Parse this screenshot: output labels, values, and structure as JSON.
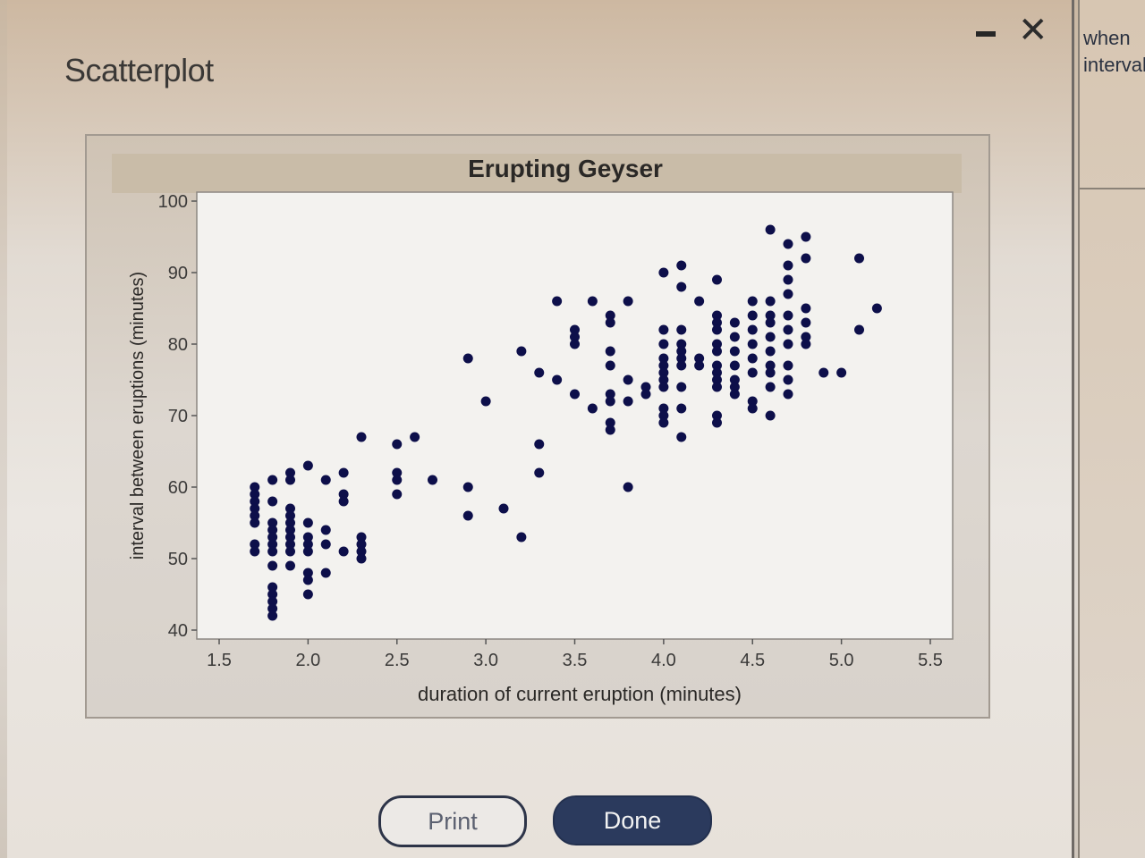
{
  "dialog": {
    "title": "Scatterplot",
    "print_label": "Print",
    "done_label": "Done"
  },
  "side_panel": {
    "lines": [
      "when",
      "interval"
    ]
  },
  "colors": {
    "point": "#0d0f4a",
    "done_button": "#2b3a5d",
    "plot_bg": "#f3f2ef",
    "title_band": "#c9bca8"
  },
  "chart_data": {
    "type": "scatter",
    "title": "Erupting Geyser",
    "xlabel": "duration of current eruption (minutes)",
    "ylabel": "interval between eruptions (minutes)",
    "xlim": [
      1.5,
      5.5
    ],
    "ylim": [
      40,
      100
    ],
    "xticks": [
      "1.5",
      "2.0",
      "2.5",
      "3.0",
      "3.5",
      "4.0",
      "4.5",
      "5.0",
      "5.5"
    ],
    "yticks": [
      "40",
      "50",
      "60",
      "70",
      "80",
      "90",
      "100"
    ],
    "grid": false,
    "points": [
      [
        1.7,
        60
      ],
      [
        1.7,
        59
      ],
      [
        1.7,
        58
      ],
      [
        1.7,
        57
      ],
      [
        1.7,
        56
      ],
      [
        1.7,
        55
      ],
      [
        1.7,
        52
      ],
      [
        1.7,
        51
      ],
      [
        1.8,
        61
      ],
      [
        1.8,
        58
      ],
      [
        1.8,
        55
      ],
      [
        1.8,
        54
      ],
      [
        1.8,
        53
      ],
      [
        1.8,
        52
      ],
      [
        1.8,
        51
      ],
      [
        1.8,
        49
      ],
      [
        1.8,
        46
      ],
      [
        1.8,
        45
      ],
      [
        1.8,
        44
      ],
      [
        1.8,
        43
      ],
      [
        1.8,
        42
      ],
      [
        1.9,
        62
      ],
      [
        1.9,
        61
      ],
      [
        1.9,
        57
      ],
      [
        1.9,
        56
      ],
      [
        1.9,
        55
      ],
      [
        1.9,
        54
      ],
      [
        1.9,
        53
      ],
      [
        1.9,
        52
      ],
      [
        1.9,
        51
      ],
      [
        1.9,
        49
      ],
      [
        2.0,
        63
      ],
      [
        2.0,
        55
      ],
      [
        2.0,
        53
      ],
      [
        2.0,
        52
      ],
      [
        2.0,
        51
      ],
      [
        2.0,
        48
      ],
      [
        2.0,
        47
      ],
      [
        2.0,
        45
      ],
      [
        2.1,
        61
      ],
      [
        2.1,
        54
      ],
      [
        2.1,
        52
      ],
      [
        2.1,
        48
      ],
      [
        2.2,
        62
      ],
      [
        2.2,
        59
      ],
      [
        2.2,
        58
      ],
      [
        2.2,
        51
      ],
      [
        2.3,
        67
      ],
      [
        2.3,
        53
      ],
      [
        2.3,
        52
      ],
      [
        2.3,
        51
      ],
      [
        2.3,
        50
      ],
      [
        2.5,
        66
      ],
      [
        2.5,
        62
      ],
      [
        2.5,
        61
      ],
      [
        2.5,
        59
      ],
      [
        2.6,
        67
      ],
      [
        2.7,
        61
      ],
      [
        2.9,
        78
      ],
      [
        2.9,
        60
      ],
      [
        2.9,
        56
      ],
      [
        3.0,
        72
      ],
      [
        3.1,
        57
      ],
      [
        3.2,
        79
      ],
      [
        3.2,
        53
      ],
      [
        3.3,
        76
      ],
      [
        3.3,
        66
      ],
      [
        3.3,
        62
      ],
      [
        3.4,
        86
      ],
      [
        3.4,
        75
      ],
      [
        3.5,
        82
      ],
      [
        3.5,
        81
      ],
      [
        3.5,
        80
      ],
      [
        3.5,
        73
      ],
      [
        3.6,
        86
      ],
      [
        3.6,
        71
      ],
      [
        3.7,
        84
      ],
      [
        3.7,
        83
      ],
      [
        3.7,
        79
      ],
      [
        3.7,
        77
      ],
      [
        3.7,
        73
      ],
      [
        3.7,
        72
      ],
      [
        3.7,
        69
      ],
      [
        3.7,
        68
      ],
      [
        3.8,
        86
      ],
      [
        3.8,
        75
      ],
      [
        3.8,
        72
      ],
      [
        3.8,
        60
      ],
      [
        3.9,
        74
      ],
      [
        3.9,
        73
      ],
      [
        4.0,
        90
      ],
      [
        4.0,
        82
      ],
      [
        4.0,
        80
      ],
      [
        4.0,
        78
      ],
      [
        4.0,
        77
      ],
      [
        4.0,
        76
      ],
      [
        4.0,
        75
      ],
      [
        4.0,
        74
      ],
      [
        4.0,
        71
      ],
      [
        4.0,
        70
      ],
      [
        4.0,
        69
      ],
      [
        4.1,
        91
      ],
      [
        4.1,
        88
      ],
      [
        4.1,
        82
      ],
      [
        4.1,
        80
      ],
      [
        4.1,
        79
      ],
      [
        4.1,
        78
      ],
      [
        4.1,
        77
      ],
      [
        4.1,
        74
      ],
      [
        4.1,
        71
      ],
      [
        4.1,
        67
      ],
      [
        4.2,
        86
      ],
      [
        4.2,
        78
      ],
      [
        4.2,
        77
      ],
      [
        4.3,
        89
      ],
      [
        4.3,
        84
      ],
      [
        4.3,
        83
      ],
      [
        4.3,
        82
      ],
      [
        4.3,
        80
      ],
      [
        4.3,
        79
      ],
      [
        4.3,
        77
      ],
      [
        4.3,
        76
      ],
      [
        4.3,
        75
      ],
      [
        4.3,
        74
      ],
      [
        4.3,
        70
      ],
      [
        4.3,
        69
      ],
      [
        4.4,
        83
      ],
      [
        4.4,
        81
      ],
      [
        4.4,
        79
      ],
      [
        4.4,
        77
      ],
      [
        4.4,
        75
      ],
      [
        4.4,
        74
      ],
      [
        4.4,
        73
      ],
      [
        4.5,
        86
      ],
      [
        4.5,
        84
      ],
      [
        4.5,
        82
      ],
      [
        4.5,
        80
      ],
      [
        4.5,
        78
      ],
      [
        4.5,
        76
      ],
      [
        4.5,
        72
      ],
      [
        4.5,
        71
      ],
      [
        4.6,
        96
      ],
      [
        4.6,
        86
      ],
      [
        4.6,
        84
      ],
      [
        4.6,
        83
      ],
      [
        4.6,
        81
      ],
      [
        4.6,
        79
      ],
      [
        4.6,
        77
      ],
      [
        4.6,
        76
      ],
      [
        4.6,
        74
      ],
      [
        4.6,
        70
      ],
      [
        4.7,
        94
      ],
      [
        4.7,
        91
      ],
      [
        4.7,
        89
      ],
      [
        4.7,
        87
      ],
      [
        4.7,
        84
      ],
      [
        4.7,
        82
      ],
      [
        4.7,
        80
      ],
      [
        4.7,
        77
      ],
      [
        4.7,
        75
      ],
      [
        4.7,
        73
      ],
      [
        4.8,
        95
      ],
      [
        4.8,
        92
      ],
      [
        4.8,
        85
      ],
      [
        4.8,
        83
      ],
      [
        4.8,
        81
      ],
      [
        4.8,
        80
      ],
      [
        4.9,
        76
      ],
      [
        5.0,
        76
      ],
      [
        5.1,
        92
      ],
      [
        5.1,
        82
      ],
      [
        5.2,
        85
      ]
    ]
  }
}
